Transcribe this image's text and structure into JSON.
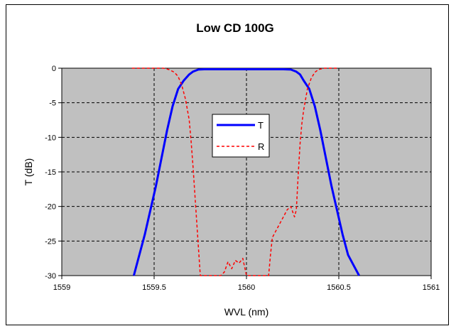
{
  "chart_data": {
    "type": "line",
    "title": "Low CD 100G",
    "xlabel": "WVL (nm)",
    "ylabel": "T (dB)",
    "xlim": [
      1559,
      1561
    ],
    "ylim": [
      -30,
      0
    ],
    "xticks": [
      "1559",
      "1559.5",
      "1560",
      "1560.5",
      "1561"
    ],
    "yticks": [
      "0",
      "-5",
      "-10",
      "-15",
      "-20",
      "-25",
      "-30"
    ],
    "grid": true,
    "grid_style": "dashed",
    "plot_background": "#c0c0c0",
    "legend_position": "center-left",
    "series": [
      {
        "name": "T",
        "color": "#0000ff",
        "style": "solid",
        "x": [
          1559.39,
          1559.42,
          1559.45,
          1559.48,
          1559.51,
          1559.54,
          1559.57,
          1559.6,
          1559.63,
          1559.66,
          1559.69,
          1559.71,
          1559.74,
          1559.77,
          1559.8,
          1559.85,
          1559.9,
          1559.95,
          1560.0,
          1560.05,
          1560.1,
          1560.15,
          1560.2,
          1560.24,
          1560.27,
          1560.29,
          1560.31,
          1560.34,
          1560.37,
          1560.4,
          1560.43,
          1560.46,
          1560.49,
          1560.52,
          1560.55,
          1560.58,
          1560.61
        ],
        "y": [
          -30,
          -27,
          -24,
          -20.5,
          -17,
          -13,
          -9,
          -5.5,
          -3,
          -1.8,
          -0.9,
          -0.5,
          -0.2,
          -0.15,
          -0.15,
          -0.15,
          -0.15,
          -0.15,
          -0.15,
          -0.15,
          -0.15,
          -0.15,
          -0.15,
          -0.2,
          -0.5,
          -0.9,
          -1.8,
          -3,
          -5.5,
          -9,
          -13,
          -17,
          -20.5,
          -24,
          -27,
          -28.5,
          -30
        ]
      },
      {
        "name": "R",
        "color": "#ff0000",
        "style": "dashed",
        "x": [
          1559.38,
          1559.45,
          1559.5,
          1559.55,
          1559.58,
          1559.61,
          1559.63,
          1559.65,
          1559.67,
          1559.69,
          1559.7,
          1559.71,
          1559.72,
          1559.73,
          1559.74,
          1559.75,
          1559.77,
          1559.78,
          1559.8,
          1559.82,
          1559.84,
          1559.86,
          1559.88,
          1559.9,
          1559.92,
          1559.94,
          1559.96,
          1559.98,
          1560.0,
          1560.02,
          1560.04,
          1560.06,
          1560.08,
          1560.1,
          1560.12,
          1560.13,
          1560.14,
          1560.16,
          1560.18,
          1560.2,
          1560.22,
          1560.24,
          1560.26,
          1560.27,
          1560.28,
          1560.29,
          1560.3,
          1560.31,
          1560.32,
          1560.33,
          1560.35,
          1560.37,
          1560.39,
          1560.42,
          1560.45,
          1560.5
        ],
        "y": [
          0,
          0,
          0,
          0,
          -0.2,
          -0.6,
          -1.2,
          -2.5,
          -4.5,
          -7.5,
          -10.5,
          -14,
          -18,
          -22,
          -26,
          -30,
          -30,
          -30,
          -30,
          -30,
          -30,
          -30,
          -29.5,
          -28,
          -29,
          -27.8,
          -28.2,
          -27.5,
          -30,
          -30,
          -30,
          -30,
          -30,
          -30,
          -30,
          -27,
          -24.5,
          -23.5,
          -22.5,
          -21.5,
          -20.5,
          -20,
          -21.5,
          -20.5,
          -15.5,
          -11,
          -8,
          -6,
          -4.5,
          -3,
          -1.5,
          -0.6,
          -0.2,
          0,
          0,
          0
        ]
      }
    ]
  }
}
